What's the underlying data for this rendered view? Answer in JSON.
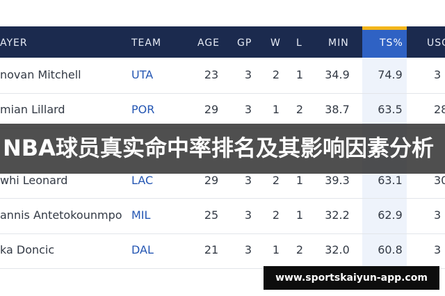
{
  "table": {
    "headers": [
      "AYER",
      "TEAM",
      "AGE",
      "GP",
      "W",
      "L",
      "MIN",
      "TS%",
      "USG"
    ],
    "rows": [
      [
        "novan Mitchell",
        "UTA",
        "23",
        "3",
        "2",
        "1",
        "34.9",
        "74.9",
        "3"
      ],
      [
        "mian Lillard",
        "POR",
        "29",
        "3",
        "1",
        "2",
        "38.7",
        "63.5",
        "28"
      ],
      [
        "whi Leonard",
        "LAC",
        "29",
        "3",
        "2",
        "1",
        "39.3",
        "63.1",
        "30"
      ],
      [
        "annis Antetokounmpo",
        "MIL",
        "25",
        "3",
        "2",
        "1",
        "32.2",
        "62.9",
        "3"
      ],
      [
        "ka Doncic",
        "DAL",
        "21",
        "3",
        "1",
        "2",
        "32.0",
        "60.8",
        "3"
      ]
    ]
  },
  "overlay": {
    "title": "NBA球员真实命中率排名及其影响因素分析"
  },
  "watermark": {
    "url": "www.sportskaiyun-app.com"
  },
  "colors": {
    "header_bg": "#1b2a4e",
    "ts_highlight": "#2f62c4",
    "ts_accent": "#f3b61b",
    "team_text": "#2456b3"
  }
}
